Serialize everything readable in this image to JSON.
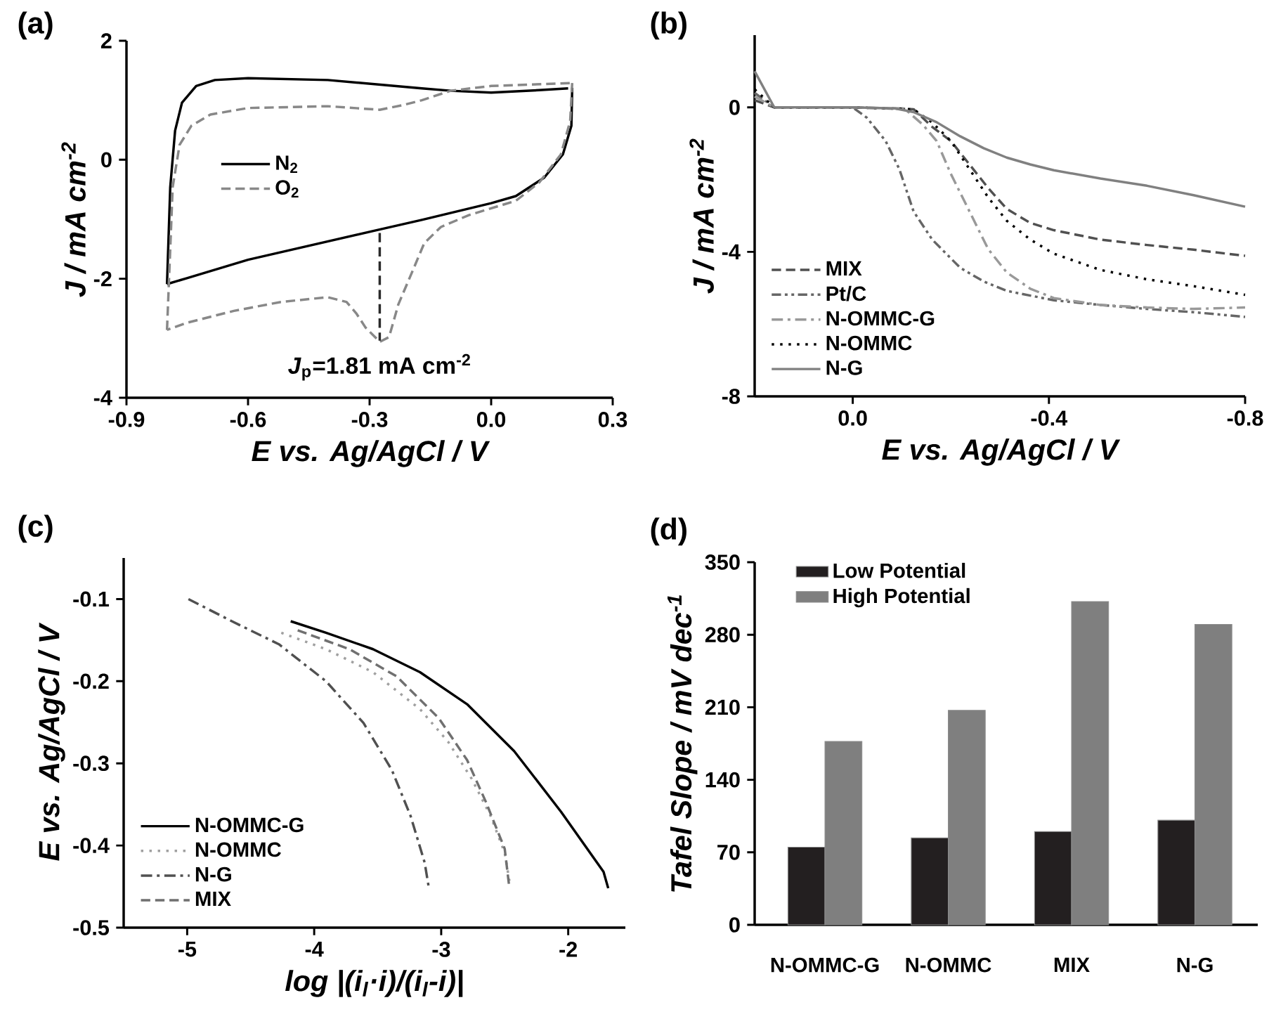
{
  "chart_data": [
    {
      "type": "line",
      "title": "(a)",
      "xlabel": "E vs. Ag/AgCl / V",
      "ylabel": "J / mA cm$^{-2}$",
      "xlim": [
        -0.9,
        0.3
      ],
      "ylim": [
        -4,
        2
      ],
      "xticks": [
        -0.9,
        -0.6,
        -0.3,
        {
          "value": 0,
          "label": "0.0"
        },
        0.3
      ],
      "yticks": [
        -4,
        -2,
        0,
        2
      ],
      "legend": "left",
      "annotations": [
        {
          "text": "*J*$_{p}$=1.81 mA cm$^{-2}$",
          "x": -0.275,
          "y": -3.06
        }
      ],
      "series": [
        {
          "name": "N$_{2}$",
          "color": "#000000",
          "line_style": "solid",
          "x": [
            0.2,
            0.198,
            0.177,
            0.131,
            0.061,
            0,
            -0.171,
            -0.287,
            -0.6,
            -0.751,
            -0.8
          ],
          "values": [
            1.21,
            0.57,
            0.09,
            -0.3,
            -0.61,
            -0.73,
            -1.01,
            -1.19,
            -1.68,
            -1.99,
            -2.09
          ]
        },
        {
          "name": "O$_{2}$",
          "color": "#888888",
          "line_style": "dashed",
          "x": [
            0.2,
            0.195,
            0.172,
            0.119,
            0.061,
            -0.055,
            -0.124,
            -0.165,
            -0.194,
            -0.229,
            -0.252,
            -0.275,
            -0.31,
            -0.333,
            -0.357,
            -0.403,
            -0.519,
            -0.635,
            -0.751,
            -0.8
          ],
          "values": [
            1.29,
            0.65,
            0.09,
            -0.38,
            -0.69,
            -0.93,
            -1.13,
            -1.4,
            -1.87,
            -2.43,
            -2.98,
            -3.06,
            -2.82,
            -2.58,
            -2.39,
            -2.31,
            -2.39,
            -2.54,
            -2.74,
            -2.86
          ]
        },
        {
          "color": "#000000",
          "line_style": "solid",
          "x": [
            -0.8,
            -0.792,
            -0.78,
            -0.763,
            -0.728,
            -0.682,
            -0.6,
            -0.403,
            -0.171,
            -0.1,
            0,
            0.118,
            0.19
          ],
          "values": [
            -2.09,
            -0.46,
            0.49,
            0.96,
            1.24,
            1.34,
            1.37,
            1.34,
            1.2,
            1.16,
            1.13,
            1.17,
            1.2
          ]
        },
        {
          "color": "#888888",
          "line_style": "dashed",
          "x": [
            -0.8,
            -0.796,
            -0.786,
            -0.769,
            -0.74,
            -0.693,
            -0.6,
            -0.403,
            -0.275,
            -0.217,
            -0.171,
            -0.1,
            0,
            0.2
          ],
          "values": [
            -2.86,
            -2.19,
            -0.46,
            0.25,
            0.57,
            0.76,
            0.87,
            0.9,
            0.84,
            0.92,
            1.0,
            1.16,
            1.24,
            1.29
          ]
        },
        {
          "color": "#2b2b2b",
          "line_style": "dashed",
          "x": [
            -0.275,
            -0.275
          ],
          "values": [
            -1.23,
            -3.04
          ]
        }
      ]
    },
    {
      "type": "line",
      "title": "(b)",
      "xlabel": "E vs. Ag/AgCl / V",
      "ylabel": "J / mA cm$^{-2}$",
      "xlim": [
        0.2,
        -0.8
      ],
      "ylim": [
        -8,
        2
      ],
      "xticks": [
        {
          "value": 0,
          "label": "0.0"
        },
        -0.4,
        -0.8
      ],
      "yticks": [
        -8,
        -4,
        0
      ],
      "legend": "bottom left",
      "series": [
        {
          "name": "MIX",
          "color": "#505050",
          "line_style": "dashed",
          "x": [
            0.2,
            0.16,
            0,
            -0.124,
            -0.162,
            -0.2,
            -0.238,
            -0.276,
            -0.314,
            -0.362,
            -0.41,
            -0.505,
            -0.6,
            -0.695,
            -0.8
          ],
          "values": [
            0.2,
            0,
            0,
            -0.05,
            -0.54,
            -0.93,
            -1.58,
            -2.23,
            -2.81,
            -3.2,
            -3.4,
            -3.66,
            -3.81,
            -3.94,
            -4.11
          ]
        },
        {
          "name": "Pt/C",
          "color": "#666666",
          "line_style": "dashdotdot",
          "x": [
            0.2,
            0.16,
            0,
            -0.029,
            -0.067,
            -0.095,
            -0.124,
            -0.162,
            -0.219,
            -0.267,
            -0.314,
            -0.41,
            -0.505,
            -0.6,
            -0.695,
            -0.8
          ],
          "values": [
            0.4,
            0,
            0,
            -0.29,
            -0.93,
            -1.71,
            -2.88,
            -3.66,
            -4.44,
            -4.82,
            -5.08,
            -5.34,
            -5.47,
            -5.58,
            -5.67,
            -5.8
          ]
        },
        {
          "name": "N-OMMC-G",
          "color": "#999999",
          "line_style": "dashdot",
          "x": [
            0.2,
            0.16,
            0,
            -0.105,
            -0.143,
            -0.171,
            -0.2,
            -0.238,
            -0.276,
            -0.314,
            -0.362,
            -0.41,
            -0.505,
            -0.6,
            -0.695,
            -0.8
          ],
          "values": [
            0.3,
            0,
            0,
            -0.03,
            -0.48,
            -0.93,
            -1.84,
            -2.88,
            -3.92,
            -4.57,
            -5.02,
            -5.28,
            -5.47,
            -5.54,
            -5.58,
            -5.54
          ]
        },
        {
          "name": "N-OMMC",
          "color": "#000000",
          "line_style": "dotted",
          "x": [
            0.2,
            0.16,
            0,
            -0.124,
            -0.162,
            -0.2,
            -0.238,
            -0.276,
            -0.314,
            -0.362,
            -0.41,
            -0.505,
            -0.6,
            -0.695,
            -0.8
          ],
          "values": [
            0.5,
            0,
            0,
            -0.05,
            -0.42,
            -0.93,
            -1.71,
            -2.49,
            -3.14,
            -3.66,
            -4.05,
            -4.5,
            -4.76,
            -4.95,
            -5.19
          ]
        },
        {
          "name": "N-G",
          "color": "#808080",
          "line_style": "solid",
          "x": [
            0.2,
            0.16,
            0,
            -0.086,
            -0.124,
            -0.171,
            -0.219,
            -0.267,
            -0.314,
            -0.362,
            -0.41,
            -0.505,
            -0.6,
            -0.695,
            -0.8
          ],
          "values": [
            1.0,
            0,
            0,
            -0.03,
            -0.13,
            -0.41,
            -0.8,
            -1.13,
            -1.39,
            -1.58,
            -1.74,
            -1.97,
            -2.17,
            -2.43,
            -2.75
          ]
        }
      ]
    },
    {
      "type": "line",
      "title": "(c)",
      "xlabel": "log |(i$_{l}$·i)/(i$_{l}$-i)|",
      "ylabel": "E vs. Ag/AgCl / V",
      "xlim": [
        -5.5,
        -1.55
      ],
      "ylim": [
        -0.5,
        -0.05
      ],
      "xticks": [
        -5,
        -4,
        -3,
        -2
      ],
      "yticks": [
        -0.5,
        -0.4,
        -0.3,
        -0.2,
        -0.1
      ],
      "legend": "bottom left",
      "series": [
        {
          "name": "N-OMMC-G",
          "color": "#000000",
          "line_style": "solid",
          "x": [
            -4.185,
            -3.907,
            -3.537,
            -3.167,
            -2.796,
            -2.426,
            -2.056,
            -1.722,
            -1.685
          ],
          "values": [
            -0.127,
            -0.141,
            -0.161,
            -0.189,
            -0.228,
            -0.285,
            -0.359,
            -0.432,
            -0.452
          ]
        },
        {
          "name": "N-OMMC",
          "color": "#a0a0a0",
          "line_style": "dotted",
          "x": [
            -4.259,
            -3.907,
            -3.537,
            -3.167,
            -2.944,
            -2.759,
            -2.611,
            -2.5,
            -2.463
          ],
          "values": [
            -0.141,
            -0.161,
            -0.189,
            -0.234,
            -0.274,
            -0.319,
            -0.364,
            -0.409,
            -0.443
          ]
        },
        {
          "name": "N-G",
          "color": "#505050",
          "line_style": "dashdot",
          "x": [
            -4.99,
            -4.648,
            -4.278,
            -3.907,
            -3.611,
            -3.389,
            -3.241,
            -3.13,
            -3.1
          ],
          "values": [
            -0.1,
            -0.127,
            -0.155,
            -0.2,
            -0.251,
            -0.308,
            -0.364,
            -0.421,
            -0.449
          ]
        },
        {
          "name": "MIX",
          "color": "#707070",
          "line_style": "dashed",
          "x": [
            -4.13,
            -3.722,
            -3.352,
            -3.019,
            -2.796,
            -2.648,
            -2.5,
            -2.463
          ],
          "values": [
            -0.138,
            -0.161,
            -0.194,
            -0.245,
            -0.296,
            -0.347,
            -0.404,
            -0.452
          ]
        }
      ]
    },
    {
      "type": "bar",
      "title": "(d)",
      "ylabel": "Tafel Slope / mV dec$^{-1}$",
      "categories": [
        "N-OMMC-G",
        "N-OMMC",
        "MIX",
        "N-G"
      ],
      "ylim": [
        0,
        350
      ],
      "yticks": [
        0,
        70,
        140,
        210,
        280,
        350
      ],
      "legend": "top left",
      "series": [
        {
          "name": "Low Potential",
          "color": "#231f20",
          "values": [
            75,
            84,
            90,
            101
          ]
        },
        {
          "name": "High Potential",
          "color": "#7f7f7f",
          "values": [
            177,
            207,
            312,
            290
          ]
        }
      ]
    }
  ]
}
